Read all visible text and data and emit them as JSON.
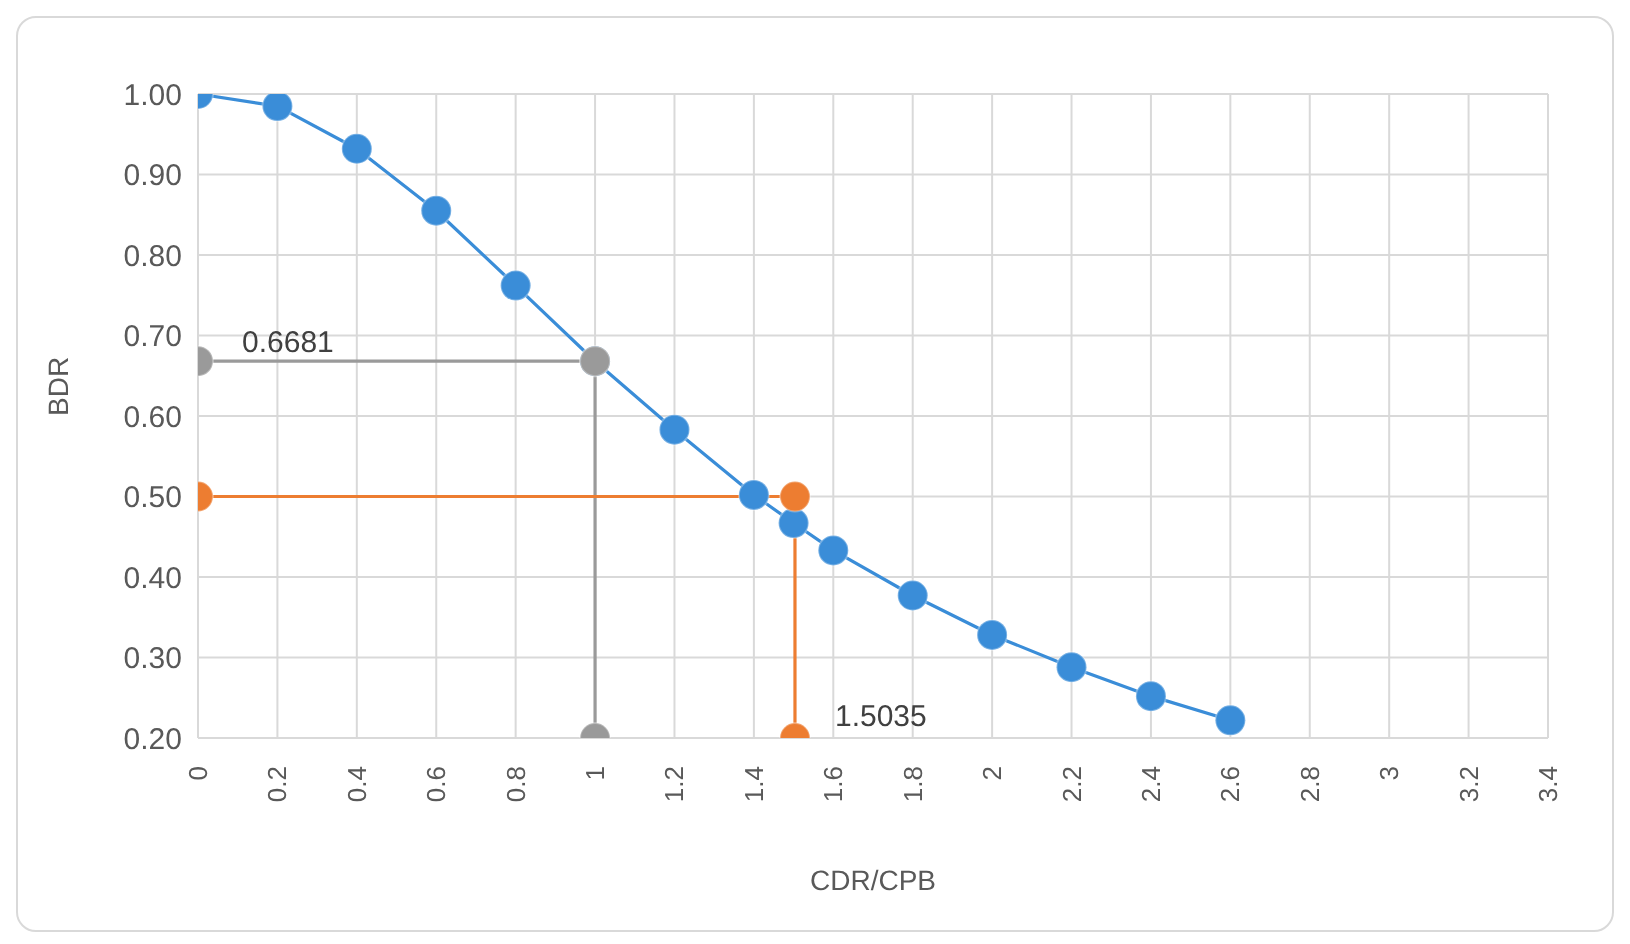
{
  "chart_data": {
    "type": "line",
    "xlabel": "CDR/CPB",
    "ylabel": "BDR",
    "xlim": [
      0,
      3.4
    ],
    "xticks": [
      0,
      0.2,
      0.4,
      0.6,
      0.8,
      1,
      1.2,
      1.4,
      1.6,
      1.8,
      2,
      2.2,
      2.4,
      2.6,
      2.8,
      3,
      3.2,
      3.4
    ],
    "ylim": [
      0.2,
      1.0
    ],
    "yticks": [
      {
        "value": 0.2,
        "label": "0.20"
      },
      {
        "value": 0.3,
        "label": "0.30"
      },
      {
        "value": 0.4,
        "label": "0.40"
      },
      {
        "value": 0.5,
        "label": "0.50"
      },
      {
        "value": 0.6,
        "label": "0.60"
      },
      {
        "value": 0.7,
        "label": "0.70"
      },
      {
        "value": 0.8,
        "label": "0.80"
      },
      {
        "value": 0.9,
        "label": "0.90"
      },
      {
        "value": 1.0,
        "label": "1.00"
      }
    ],
    "grid": true,
    "marker": "circle",
    "legend": false,
    "series": [
      {
        "color": "#3a8dd8",
        "x": [
          0,
          0.2,
          0.4,
          0.6,
          0.8,
          1,
          1.2,
          1.4,
          1.5,
          1.6,
          1.8,
          2,
          2.2,
          2.4,
          2.6
        ],
        "values": [
          1.0,
          0.985,
          0.932,
          0.855,
          0.762,
          0.668,
          0.583,
          0.502,
          0.467,
          0.433,
          0.377,
          0.328,
          0.288,
          0.252,
          0.222
        ]
      },
      {
        "color": "#9a9a9a",
        "x": [
          0,
          1,
          1
        ],
        "values": [
          0.6681,
          0.6681,
          0.2
        ]
      },
      {
        "color": "#ed7d31",
        "x": [
          0,
          1.5035,
          1.5035
        ],
        "values": [
          0.5,
          0.5,
          0.2
        ]
      }
    ],
    "annotations": [
      {
        "text": "0.6681",
        "x": 0,
        "y": 0.6681
      },
      {
        "text": "1.5035",
        "x": 1.5035,
        "y": 0.2
      }
    ]
  }
}
